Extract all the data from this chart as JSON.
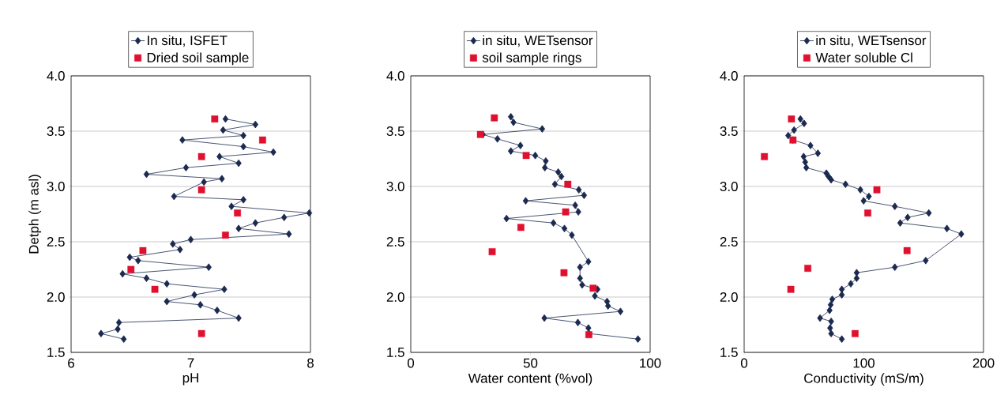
{
  "chart_data": [
    {
      "type": "scatter",
      "xlabel": "pH",
      "ylabel": "Detph (m asl)",
      "xlim": [
        6,
        8
      ],
      "xticks": [
        6,
        7,
        8
      ],
      "ylim": [
        1.5,
        4.0
      ],
      "yticks": [
        {
          "value": 1.5,
          "label": "1.5"
        },
        {
          "value": 2.0,
          "label": "2.0"
        },
        {
          "value": 2.5,
          "label": "2.5"
        },
        {
          "value": 3.0,
          "label": "3.0"
        },
        {
          "value": 3.5,
          "label": "3.5"
        },
        {
          "value": 4.0,
          "label": "4.0"
        }
      ],
      "grid": "y",
      "legend": "top",
      "series": [
        {
          "name": "In situ, ISFET",
          "type": "line",
          "marker": "diamond",
          "color": "#1b2a4e",
          "x": [
            7.29,
            7.54,
            7.27,
            7.44,
            6.93,
            7.44,
            7.69,
            7.24,
            7.4,
            6.96,
            6.63,
            7.26,
            7.11,
            6.86,
            7.44,
            7.34,
            7.99,
            7.78,
            7.54,
            7.4,
            7.82,
            7.0,
            6.85,
            6.91,
            6.49,
            6.56,
            7.15,
            6.43,
            6.63,
            6.8,
            7.28,
            7.03,
            6.8,
            7.08,
            7.22,
            7.4,
            6.4,
            6.39,
            6.25,
            6.44
          ],
          "values": [
            3.61,
            3.56,
            3.51,
            3.46,
            3.42,
            3.36,
            3.31,
            3.27,
            3.21,
            3.17,
            3.11,
            3.07,
            3.04,
            2.91,
            2.88,
            2.82,
            2.76,
            2.72,
            2.67,
            2.62,
            2.57,
            2.52,
            2.48,
            2.43,
            2.36,
            2.33,
            2.27,
            2.21,
            2.17,
            2.12,
            2.07,
            2.02,
            1.96,
            1.93,
            1.88,
            1.81,
            1.77,
            1.71,
            1.67,
            1.62
          ]
        },
        {
          "name": "Dried soil sample",
          "type": "scatter",
          "marker": "square",
          "color": "#e0102f",
          "x": [
            7.2,
            7.6,
            7.09,
            7.09,
            7.39,
            7.29,
            6.6,
            6.5,
            6.7,
            7.09
          ],
          "values": [
            3.61,
            3.42,
            3.27,
            2.97,
            2.76,
            2.56,
            2.42,
            2.25,
            2.07,
            1.67
          ]
        }
      ]
    },
    {
      "type": "scatter",
      "xlabel": "Water content (%vol)",
      "xlim": [
        0,
        100
      ],
      "xticks": [
        0,
        50,
        100
      ],
      "ylim": [
        1.5,
        4.0
      ],
      "yticks": [
        {
          "value": 1.5,
          "label": "1.5"
        },
        {
          "value": 2.0,
          "label": "2.0"
        },
        {
          "value": 2.5,
          "label": "2.5"
        },
        {
          "value": 3.0,
          "label": "3.0"
        },
        {
          "value": 3.5,
          "label": "3.5"
        },
        {
          "value": 4.0,
          "label": "4.0"
        }
      ],
      "grid": "y",
      "legend": "top",
      "series": [
        {
          "name": "in situ, WETsensor",
          "type": "line",
          "marker": "diamond",
          "color": "#1b2a4e",
          "x": [
            41.8,
            42.9,
            54.9,
            30.1,
            36.2,
            45.8,
            41.8,
            52.0,
            56.4,
            56.0,
            61.6,
            62.9,
            60.2,
            70.2,
            72.4,
            48.0,
            68.7,
            70.0,
            40.0,
            59.6,
            64.2,
            67.3,
            74.2,
            70.7,
            70.7,
            71.6,
            78.0,
            76.9,
            82.0,
            82.4,
            87.6,
            55.8,
            69.8,
            74.2,
            74.4,
            94.9
          ],
          "values": [
            3.63,
            3.58,
            3.52,
            3.47,
            3.43,
            3.37,
            3.32,
            3.28,
            3.23,
            3.17,
            3.13,
            3.09,
            3.02,
            2.97,
            2.92,
            2.87,
            2.83,
            2.77,
            2.71,
            2.67,
            2.62,
            2.56,
            2.32,
            2.27,
            2.17,
            2.11,
            2.07,
            2.01,
            1.96,
            1.92,
            1.87,
            1.81,
            1.77,
            1.72,
            1.67,
            1.62
          ]
        },
        {
          "name": "soil sample rings",
          "type": "scatter",
          "marker": "square",
          "color": "#e0102f",
          "x": [
            34.9,
            29.1,
            48.2,
            65.6,
            64.7,
            46.0,
            34.0,
            64.0,
            76.2,
            74.4
          ],
          "values": [
            3.62,
            3.47,
            3.28,
            3.02,
            2.77,
            2.63,
            2.41,
            2.22,
            2.08,
            1.66
          ]
        }
      ]
    },
    {
      "type": "scatter",
      "xlabel": "Conductivity (mS/m)",
      "xlim": [
        0,
        200
      ],
      "xticks": [
        0,
        100,
        200
      ],
      "ylim": [
        1.5,
        4.0
      ],
      "yticks": [
        {
          "value": 1.5,
          "label": "1.5"
        },
        {
          "value": 2.0,
          "label": "2.0"
        },
        {
          "value": 2.5,
          "label": "2.5"
        },
        {
          "value": 3.0,
          "label": "3.0"
        },
        {
          "value": 3.5,
          "label": "3.5"
        },
        {
          "value": 4.0,
          "label": "4.0"
        }
      ],
      "grid": "y",
      "legend": "top",
      "series": [
        {
          "name": "in situ, WETsensor",
          "type": "line",
          "marker": "diamond",
          "color": "#1b2a4e",
          "x": [
            47.0,
            50.1,
            41.7,
            36.8,
            40.8,
            55.4,
            61.6,
            49.7,
            51.0,
            51.9,
            68.7,
            70.5,
            72.7,
            84.7,
            97.1,
            104.2,
            99.8,
            125.9,
            154.3,
            136.6,
            130.4,
            169.4,
            181.4,
            151.7,
            125.9,
            94.0,
            94.0,
            89.1,
            81.6,
            81.6,
            73.6,
            72.3,
            71.4,
            63.4,
            72.7,
            71.8,
            72.7,
            81.6
          ],
          "values": [
            3.61,
            3.57,
            3.51,
            3.46,
            3.42,
            3.37,
            3.3,
            3.27,
            3.22,
            3.17,
            3.12,
            3.09,
            3.06,
            3.02,
            2.97,
            2.91,
            2.87,
            2.82,
            2.76,
            2.72,
            2.67,
            2.62,
            2.57,
            2.33,
            2.27,
            2.22,
            2.17,
            2.12,
            2.07,
            2.02,
            1.98,
            1.93,
            1.88,
            1.81,
            1.78,
            1.72,
            1.67,
            1.62
          ]
        },
        {
          "name": "Water soluble Cl",
          "type": "scatter",
          "marker": "square",
          "color": "#e0102f",
          "x": [
            39.5,
            40.8,
            16.9,
            110.9,
            103.3,
            136.1,
            53.2,
            39.0,
            92.7
          ],
          "values": [
            3.61,
            3.42,
            3.27,
            2.97,
            2.76,
            2.42,
            2.26,
            2.07,
            1.67
          ]
        }
      ]
    }
  ]
}
